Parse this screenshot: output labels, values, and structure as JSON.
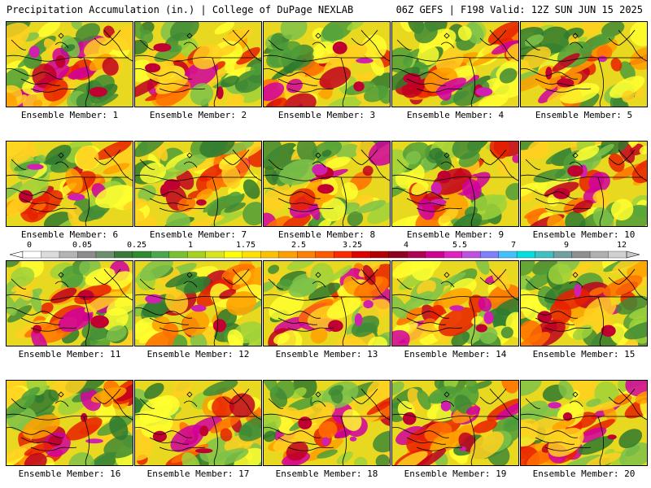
{
  "header": {
    "title": "Precipitation Accumulation (in.) | College of DuPage NEXLAB",
    "run_info": "06Z GEFS | F198 Valid: 12Z SUN JUN 15 2025"
  },
  "panels": [
    {
      "label": "Ensemble Member: 1",
      "seed": 11
    },
    {
      "label": "Ensemble Member: 2",
      "seed": 23
    },
    {
      "label": "Ensemble Member: 3",
      "seed": 37
    },
    {
      "label": "Ensemble Member: 4",
      "seed": 41
    },
    {
      "label": "Ensemble Member: 5",
      "seed": 53
    },
    {
      "label": "Ensemble Member: 6",
      "seed": 67
    },
    {
      "label": "Ensemble Member: 7",
      "seed": 71
    },
    {
      "label": "Ensemble Member: 8",
      "seed": 83
    },
    {
      "label": "Ensemble Member: 9",
      "seed": 97
    },
    {
      "label": "Ensemble Member: 10",
      "seed": 101
    },
    {
      "label": "Ensemble Member: 11",
      "seed": 113
    },
    {
      "label": "Ensemble Member: 12",
      "seed": 127
    },
    {
      "label": "Ensemble Member: 13",
      "seed": 131
    },
    {
      "label": "Ensemble Member: 14",
      "seed": 149
    },
    {
      "label": "Ensemble Member: 15",
      "seed": 151
    },
    {
      "label": "Ensemble Member: 16",
      "seed": 163
    },
    {
      "label": "Ensemble Member: 17",
      "seed": 173
    },
    {
      "label": "Ensemble Member: 18",
      "seed": 181
    },
    {
      "label": "Ensemble Member: 19",
      "seed": 191
    },
    {
      "label": "Ensemble Member: 20",
      "seed": 199
    }
  ],
  "colorbar": {
    "labels": [
      "0",
      "0.05",
      "0.25",
      "1",
      "1.75",
      "2.5",
      "3.25",
      "4",
      "5.5",
      "7",
      "9",
      "12"
    ],
    "colors": [
      "#ffffff",
      "#dcdcdc",
      "#b4b4b4",
      "#8c8c8c",
      "#6e8f6e",
      "#3a7a3a",
      "#2e8b2e",
      "#4ca84c",
      "#79c12e",
      "#a6d21e",
      "#d7e51a",
      "#ffff00",
      "#ffe000",
      "#ffc000",
      "#ffa000",
      "#ff8000",
      "#ff5a00",
      "#ff2a00",
      "#e00000",
      "#b40000",
      "#900020",
      "#b00050",
      "#d00090",
      "#e020c0",
      "#c050e0",
      "#8080ff",
      "#40c0ff",
      "#00e0e0",
      "#40c0c0",
      "#70a0a0",
      "#909090",
      "#b0b0b0",
      "#d0d0d0"
    ]
  }
}
